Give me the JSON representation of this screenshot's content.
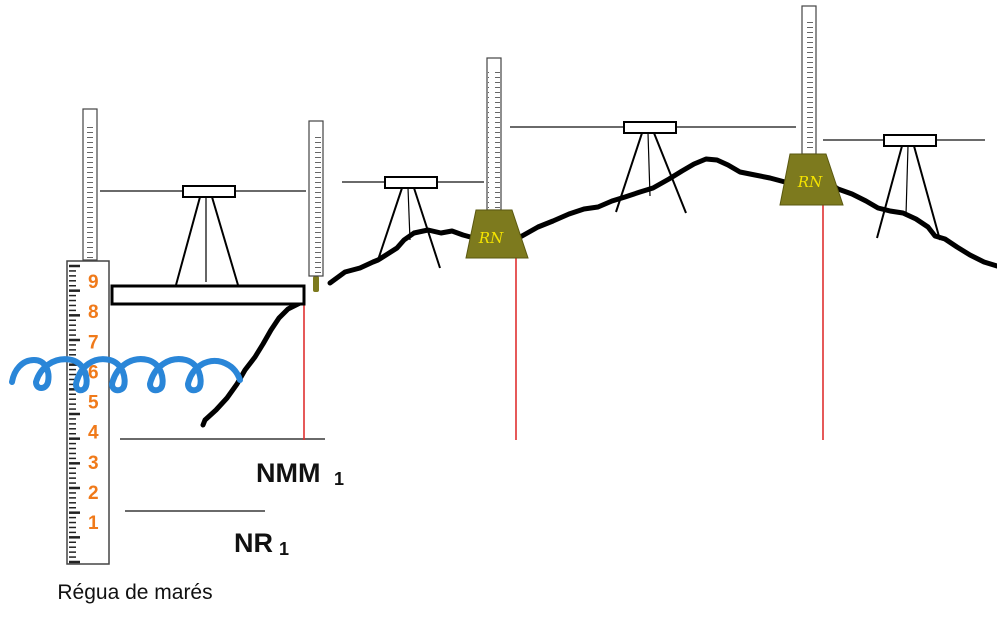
{
  "labels": {
    "nmm_main": "NMM",
    "nmm_sub": "1",
    "nr_main": "NR",
    "nr_sub": "1",
    "caption": "Régua de marés",
    "benchmark_1": "RN",
    "benchmark_2": "RN"
  },
  "tide_gauge_digits": [
    "1",
    "2",
    "3",
    "4",
    "5",
    "6",
    "7",
    "8",
    "9"
  ],
  "colors": {
    "terrain": "#000000",
    "water": "#2a86d8",
    "benchmark_fill": "#7d7a1e",
    "benchmark_text": "#f5e400",
    "vertical_reference": "#e03030",
    "gauge_digits": "#f07a1a"
  }
}
